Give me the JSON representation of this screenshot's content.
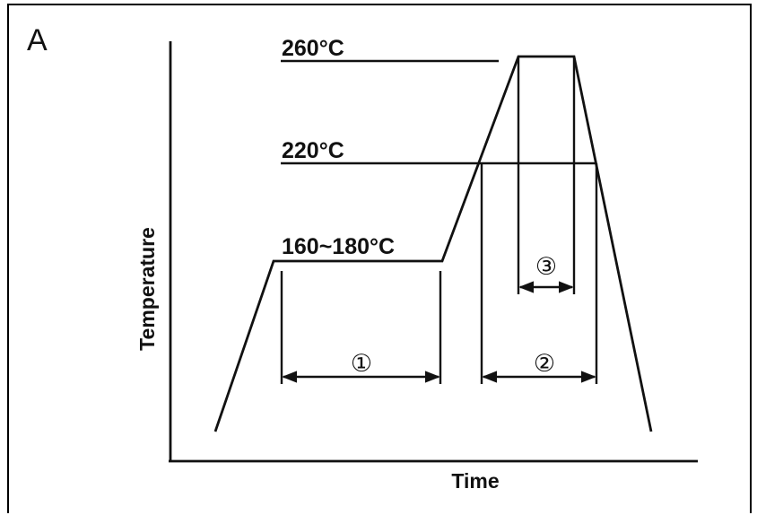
{
  "panel_label": "A",
  "x_axis_label": "Time",
  "y_axis_label": "Temperature",
  "temperatures": {
    "peak": "260°C",
    "reflow": "220°C",
    "preheat": "160~180°C"
  },
  "intervals": {
    "preheat_time": "①",
    "reflow_time": "②",
    "peak_time": "③"
  }
}
